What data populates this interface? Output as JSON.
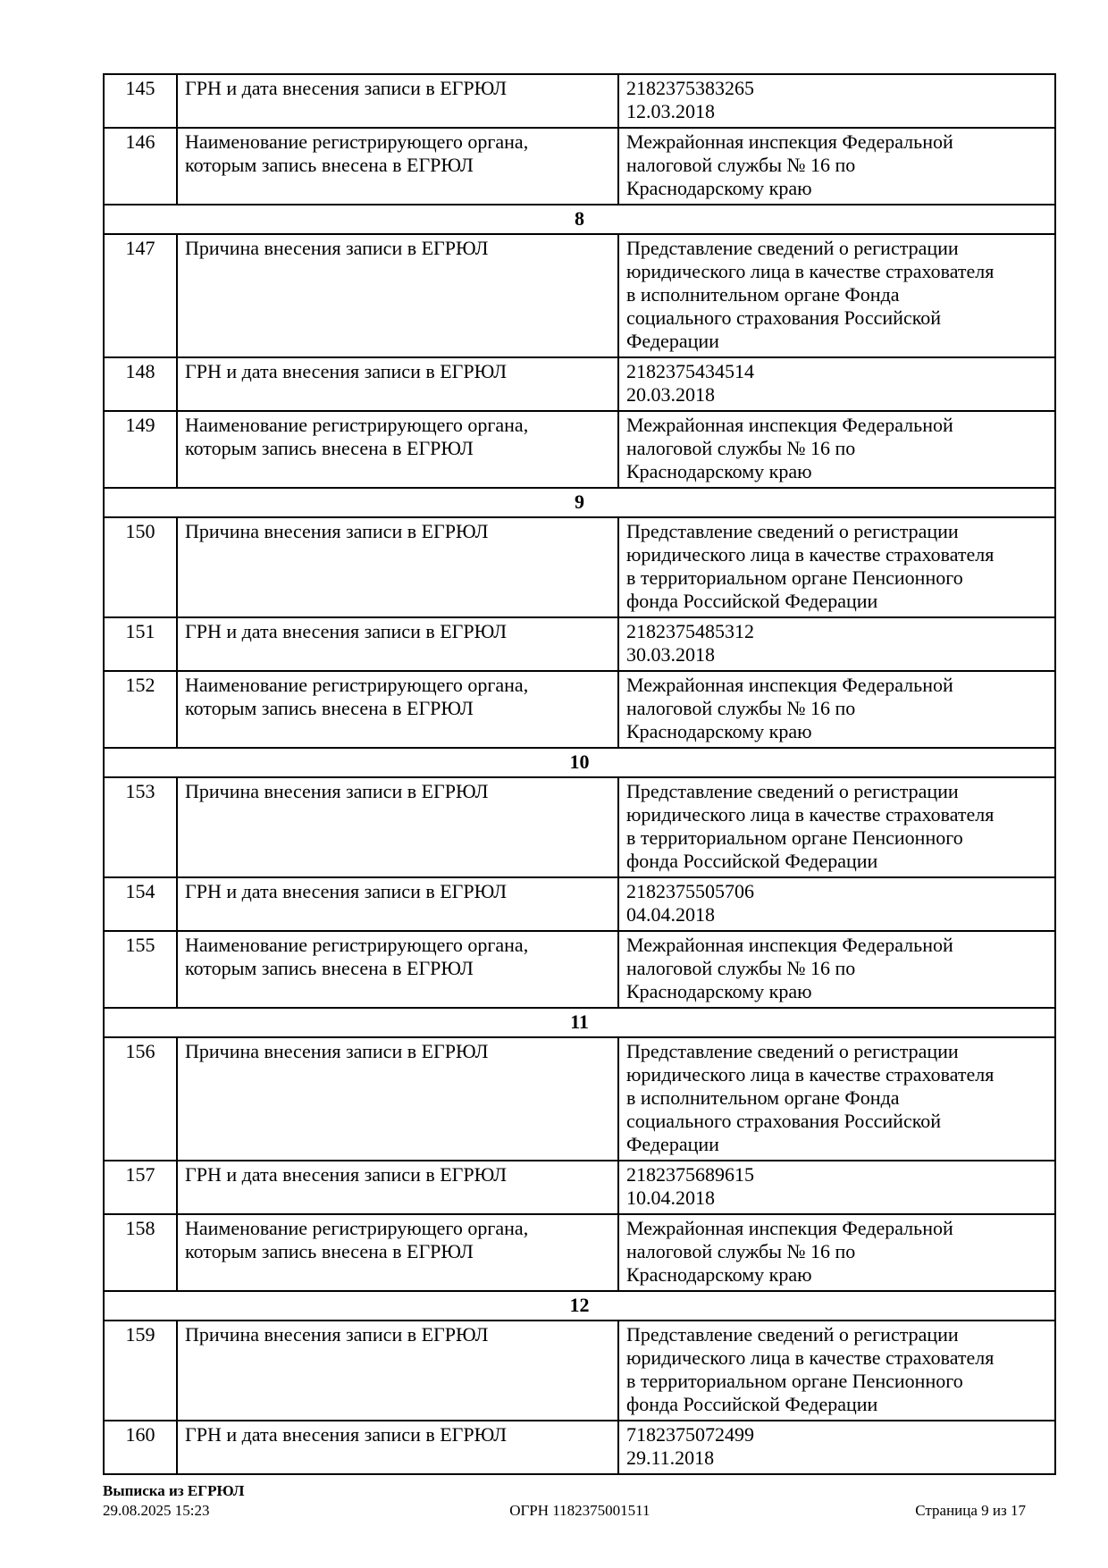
{
  "table": {
    "rows": [
      {
        "kind": "data",
        "num": "145",
        "attr": "ГРН и дата внесения записи в ЕГРЮЛ",
        "value": "2182375383265\n12.03.2018"
      },
      {
        "kind": "data",
        "num": "146",
        "attr": "Наименование регистрирующего органа,\nкоторым запись внесена в ЕГРЮЛ",
        "value": "Межрайонная инспекция Федеральной\nналоговой службы № 16 по\nКраснодарскому краю"
      },
      {
        "kind": "section",
        "label": "8"
      },
      {
        "kind": "data",
        "num": "147",
        "attr": "Причина внесения записи в ЕГРЮЛ",
        "value": "Представление сведений о регистрации\nюридического лица в качестве страхователя\nв исполнительном органе Фонда\nсоциального страхования Российской\nФедерации"
      },
      {
        "kind": "data",
        "num": "148",
        "attr": "ГРН и дата внесения записи в ЕГРЮЛ",
        "value": "2182375434514\n20.03.2018"
      },
      {
        "kind": "data",
        "num": "149",
        "attr": "Наименование регистрирующего органа,\nкоторым запись внесена в ЕГРЮЛ",
        "value": "Межрайонная инспекция Федеральной\nналоговой службы № 16 по\nКраснодарскому краю"
      },
      {
        "kind": "section",
        "label": "9"
      },
      {
        "kind": "data",
        "num": "150",
        "attr": "Причина внесения записи в ЕГРЮЛ",
        "value": "Представление сведений о регистрации\nюридического лица в качестве страхователя\nв территориальном органе Пенсионного\nфонда Российской Федерации"
      },
      {
        "kind": "data",
        "num": "151",
        "attr": "ГРН и дата внесения записи в ЕГРЮЛ",
        "value": "2182375485312\n30.03.2018"
      },
      {
        "kind": "data",
        "num": "152",
        "attr": "Наименование регистрирующего органа,\nкоторым запись внесена в ЕГРЮЛ",
        "value": "Межрайонная инспекция Федеральной\nналоговой службы № 16 по\nКраснодарскому краю"
      },
      {
        "kind": "section",
        "label": "10"
      },
      {
        "kind": "data",
        "num": "153",
        "attr": "Причина внесения записи в ЕГРЮЛ",
        "value": "Представление сведений о регистрации\nюридического лица в качестве страхователя\nв территориальном органе Пенсионного\nфонда Российской Федерации"
      },
      {
        "kind": "data",
        "num": "154",
        "attr": "ГРН и дата внесения записи в ЕГРЮЛ",
        "value": "2182375505706\n04.04.2018"
      },
      {
        "kind": "data",
        "num": "155",
        "attr": "Наименование регистрирующего органа,\nкоторым запись внесена в ЕГРЮЛ",
        "value": "Межрайонная инспекция Федеральной\nналоговой службы № 16 по\nКраснодарскому краю"
      },
      {
        "kind": "section",
        "label": "11"
      },
      {
        "kind": "data",
        "num": "156",
        "attr": "Причина внесения записи в ЕГРЮЛ",
        "value": "Представление сведений о регистрации\nюридического лица в качестве страхователя\nв исполнительном органе Фонда\nсоциального страхования Российской\nФедерации"
      },
      {
        "kind": "data",
        "num": "157",
        "attr": "ГРН и дата внесения записи в ЕГРЮЛ",
        "value": "2182375689615\n10.04.2018"
      },
      {
        "kind": "data",
        "num": "158",
        "attr": "Наименование регистрирующего органа,\nкоторым запись внесена в ЕГРЮЛ",
        "value": "Межрайонная инспекция Федеральной\nналоговой службы № 16 по\nКраснодарскому краю"
      },
      {
        "kind": "section",
        "label": "12"
      },
      {
        "kind": "data",
        "num": "159",
        "attr": "Причина внесения записи в ЕГРЮЛ",
        "value": "Представление сведений о регистрации\nюридического лица в качестве страхователя\nв территориальном органе Пенсионного\nфонда Российской Федерации"
      },
      {
        "kind": "data",
        "num": "160",
        "attr": "ГРН и дата внесения записи в ЕГРЮЛ",
        "value": "7182375072499\n29.11.2018"
      }
    ]
  },
  "footer": {
    "left_title": "Выписка из ЕГРЮЛ",
    "left_datetime": "29.08.2025 15:23",
    "center_ogrn": "ОГРН 1182375001511",
    "right_page": "Страница 9 из 17"
  }
}
